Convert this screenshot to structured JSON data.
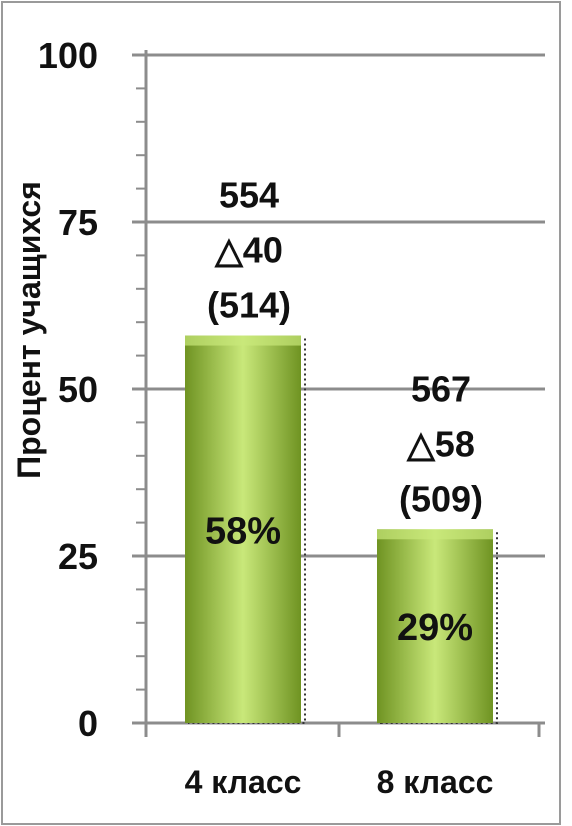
{
  "chart_data": {
    "type": "bar",
    "title": "",
    "xlabel": "",
    "ylabel": "Процент учащихся",
    "ylim": [
      0,
      100
    ],
    "yticks": [
      0,
      25,
      50,
      75,
      100
    ],
    "grid": true,
    "categories": [
      "4 класс",
      "8 класс"
    ],
    "values": [
      58,
      29
    ],
    "value_labels": [
      "58%",
      "29%"
    ],
    "annotations": [
      [
        "554",
        "△40",
        "(514)"
      ],
      [
        "567",
        "△58",
        "(509)"
      ]
    ],
    "colors": {
      "bar_light": "#c9e87a",
      "bar_main": "#97c23a",
      "bar_dark": "#6f9322",
      "grid": "#8c8c8c",
      "axis": "#8c8c8c",
      "text": "#111111"
    }
  }
}
